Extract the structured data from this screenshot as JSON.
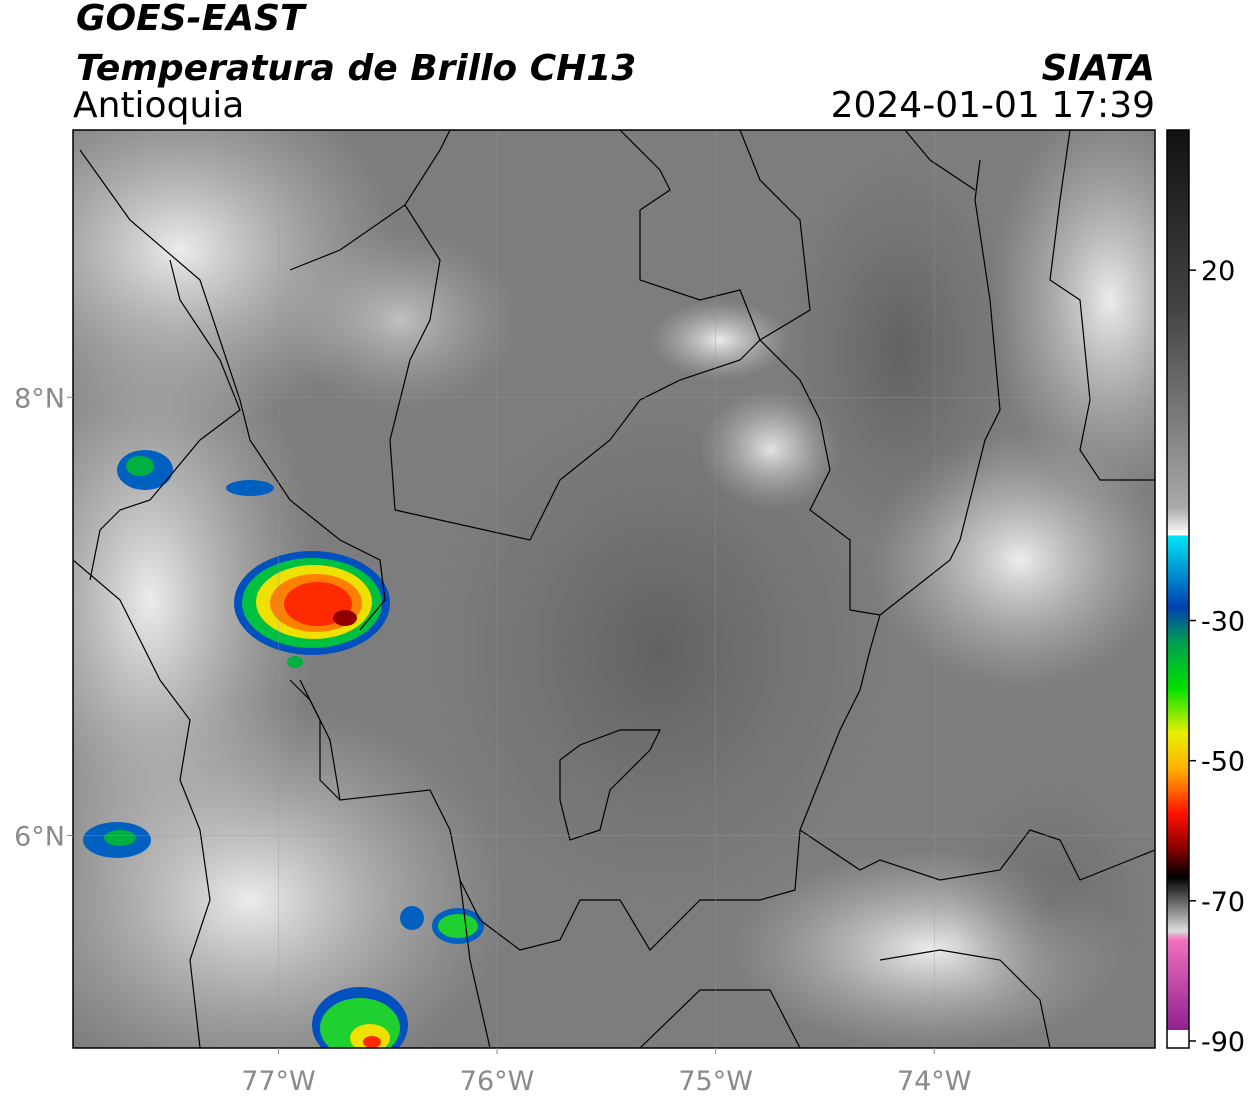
{
  "header": {
    "title": "GOES-EAST",
    "subtitle": "Temperatura de Brillo CH13",
    "region": "Antioquia",
    "source": "SIATA",
    "timestamp": "2024-01-01 17:39"
  },
  "map": {
    "xlim": [
      -77.94,
      -72.99
    ],
    "ylim": [
      5.03,
      9.22
    ],
    "xticks": [
      {
        "value": -77,
        "label": "77°W"
      },
      {
        "value": -76,
        "label": "76°W"
      },
      {
        "value": -75,
        "label": "75°W"
      },
      {
        "value": -74,
        "label": "74°W"
      }
    ],
    "yticks": [
      {
        "value": 8,
        "label": "8°N"
      },
      {
        "value": 6,
        "label": "6°N"
      }
    ],
    "grid": true
  },
  "colorbar": {
    "lim": [
      -91,
      40
    ],
    "ticks": [
      20,
      -30,
      -50,
      -70,
      -90
    ]
  }
}
